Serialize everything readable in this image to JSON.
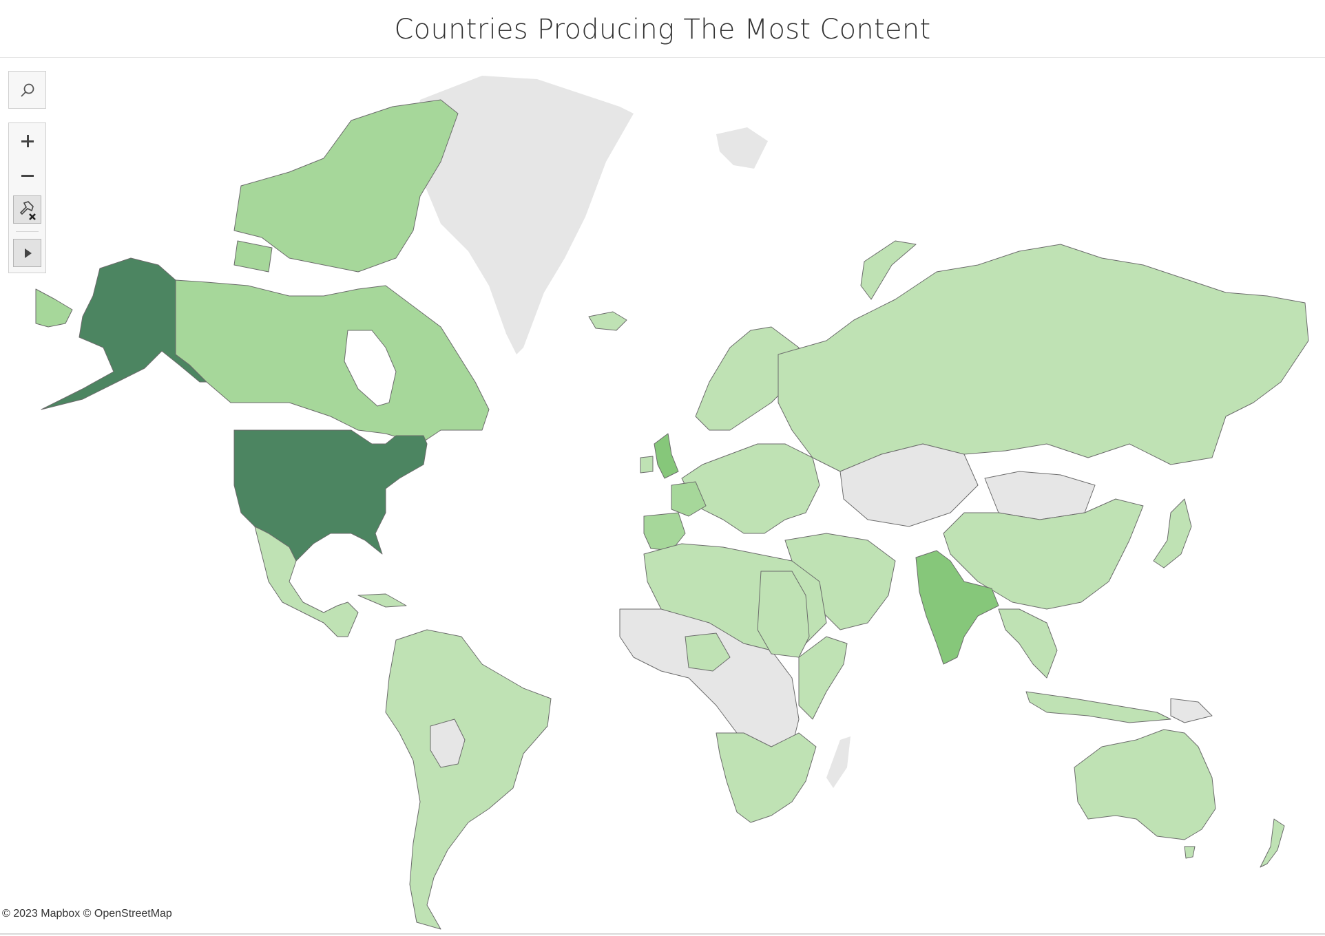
{
  "title": "Countries Producing The Most Content",
  "attribution": "© 2023 Mapbox © OpenStreetMap",
  "legend_scale": {
    "no_data": "#e6e6e6",
    "low": "#bfe2b4",
    "low_mid": "#a6d79a",
    "mid": "#86c77a",
    "high": "#4c8561"
  },
  "map_controls": [
    {
      "name": "search",
      "icon": "search-icon"
    },
    {
      "name": "zoom-in",
      "icon": "plus-icon"
    },
    {
      "name": "zoom-out",
      "icon": "minus-icon"
    },
    {
      "name": "clear-pins",
      "icon": "pin-clear-icon"
    },
    {
      "name": "pan-mode",
      "icon": "play-arrow-icon"
    }
  ],
  "highlighted_regions": [
    {
      "region": "United States",
      "level": "high"
    },
    {
      "region": "India",
      "level": "mid"
    },
    {
      "region": "United Kingdom",
      "level": "mid"
    },
    {
      "region": "Canada",
      "level": "low_mid"
    },
    {
      "region": "Greenland",
      "level": "no_data"
    }
  ]
}
